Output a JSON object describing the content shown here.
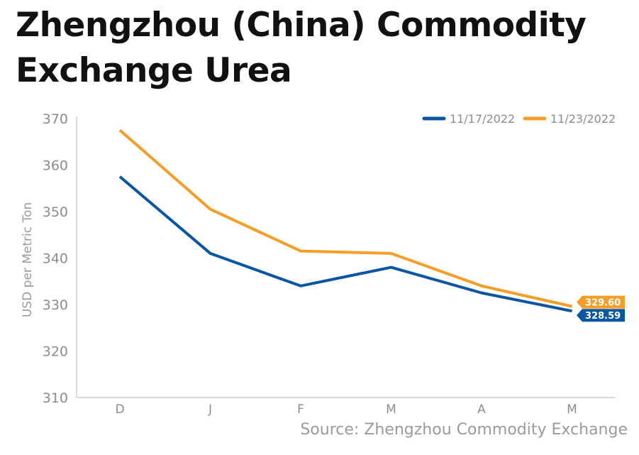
{
  "title": "Zhengzhou (China) Commodity Exchange Urea",
  "source": "Source: Zhengzhou Commodity Exchange",
  "colors": {
    "series_1": "#0a56a3",
    "series_2": "#f49e27",
    "axis": "#cfcfcf",
    "tick_text": "#8c8c8c"
  },
  "chart_data": {
    "type": "line",
    "categories": [
      "D",
      "J",
      "F",
      "M",
      "A",
      "M"
    ],
    "ylabel": "USD per Metric Ton",
    "ylim": [
      310,
      370
    ],
    "yticks": [
      310,
      320,
      330,
      340,
      350,
      360,
      370
    ],
    "grid": false,
    "legend_position": "top-right",
    "series": [
      {
        "name": "11/17/2022",
        "color": "#0a56a3",
        "values": [
          357.5,
          341,
          334,
          338,
          332.5,
          328.59
        ],
        "end_label": "328.59"
      },
      {
        "name": "11/23/2022",
        "color": "#f49e27",
        "values": [
          367.5,
          350.5,
          341.5,
          341,
          334,
          329.6
        ],
        "end_label": "329.60"
      }
    ]
  }
}
